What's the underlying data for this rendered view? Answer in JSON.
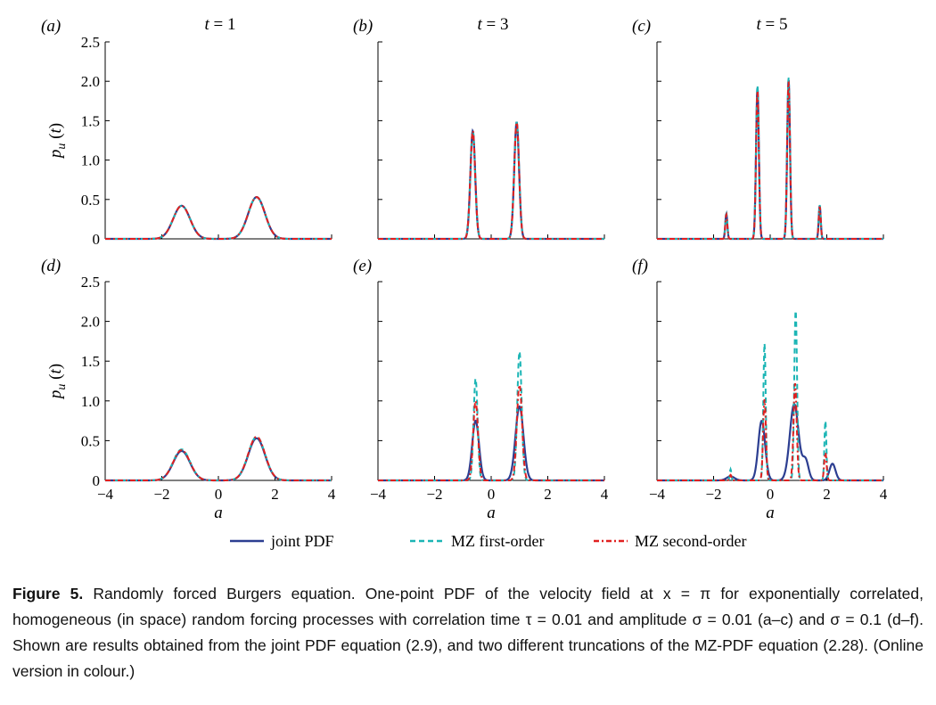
{
  "chart_data": [
    {
      "panel": "(a)",
      "title": "t = 1",
      "type": "line",
      "xlim": [
        -4,
        4
      ],
      "ylim": [
        0,
        2.5
      ],
      "yticks": [
        "0",
        "0.5",
        "1.0",
        "1.5",
        "2.0",
        "2.5"
      ],
      "xticks": [],
      "ylabel": "p_u (t)",
      "xlabel": "",
      "series": [
        {
          "name": "joint PDF",
          "peaks": [
            [
              -1.3,
              0.42,
              0.42
            ],
            [
              1.35,
              0.53,
              0.42
            ]
          ]
        },
        {
          "name": "MZ first-order",
          "peaks": [
            [
              -1.3,
              0.42,
              0.42
            ],
            [
              1.35,
              0.53,
              0.42
            ]
          ]
        },
        {
          "name": "MZ second-order",
          "peaks": [
            [
              -1.3,
              0.42,
              0.42
            ],
            [
              1.35,
              0.53,
              0.42
            ]
          ]
        }
      ]
    },
    {
      "panel": "(b)",
      "title": "t = 3",
      "type": "line",
      "xlim": [
        -4,
        4
      ],
      "ylim": [
        0,
        2.5
      ],
      "yticks": [],
      "xticks": [],
      "ylabel": "",
      "xlabel": "",
      "series": [
        {
          "name": "joint PDF",
          "peaks": [
            [
              -0.65,
              1.37,
              0.12
            ],
            [
              0.9,
              1.48,
              0.12
            ]
          ]
        },
        {
          "name": "MZ first-order",
          "peaks": [
            [
              -0.65,
              1.37,
              0.12
            ],
            [
              0.9,
              1.48,
              0.12
            ]
          ]
        },
        {
          "name": "MZ second-order",
          "peaks": [
            [
              -0.65,
              1.37,
              0.12
            ],
            [
              0.9,
              1.48,
              0.12
            ]
          ]
        }
      ]
    },
    {
      "panel": "(c)",
      "title": "t = 5",
      "type": "line",
      "xlim": [
        -4,
        4
      ],
      "ylim": [
        0,
        2.5
      ],
      "yticks": [],
      "xticks": [],
      "ylabel": "",
      "xlabel": "",
      "series": [
        {
          "name": "joint PDF",
          "peaks": [
            [
              -1.55,
              0.32,
              0.05
            ],
            [
              -0.45,
              1.92,
              0.07
            ],
            [
              0.65,
              2.02,
              0.07
            ],
            [
              1.75,
              0.42,
              0.05
            ]
          ]
        },
        {
          "name": "MZ first-order",
          "peaks": [
            [
              -1.55,
              0.32,
              0.05
            ],
            [
              -0.45,
              1.95,
              0.07
            ],
            [
              0.65,
              2.05,
              0.07
            ],
            [
              1.75,
              0.43,
              0.05
            ]
          ]
        },
        {
          "name": "MZ second-order",
          "peaks": [
            [
              -1.55,
              0.31,
              0.05
            ],
            [
              -0.45,
              1.88,
              0.07
            ],
            [
              0.65,
              2.0,
              0.07
            ],
            [
              1.75,
              0.41,
              0.05
            ]
          ]
        }
      ]
    },
    {
      "panel": "(d)",
      "title": "",
      "type": "line",
      "xlim": [
        -4,
        4
      ],
      "ylim": [
        0,
        2.5
      ],
      "yticks": [
        "0",
        "0.5",
        "1.0",
        "1.5",
        "2.0",
        "2.5"
      ],
      "xticks": [
        "−4",
        "−2",
        "0",
        "2",
        "4"
      ],
      "ylabel": "p_u (t)",
      "xlabel": "a",
      "series": [
        {
          "name": "joint PDF",
          "peaks": [
            [
              -1.3,
              0.37,
              0.42
            ],
            [
              1.35,
              0.53,
              0.42
            ]
          ]
        },
        {
          "name": "MZ first-order",
          "peaks": [
            [
              -1.3,
              0.39,
              0.42
            ],
            [
              1.35,
              0.55,
              0.42
            ]
          ]
        },
        {
          "name": "MZ second-order",
          "peaks": [
            [
              -1.3,
              0.38,
              0.42
            ],
            [
              1.35,
              0.55,
              0.42
            ]
          ]
        }
      ]
    },
    {
      "panel": "(e)",
      "title": "",
      "type": "line",
      "xlim": [
        -4,
        4
      ],
      "ylim": [
        0,
        2.5
      ],
      "yticks": [],
      "xticks": [
        "−4",
        "−2",
        "0",
        "2",
        "4"
      ],
      "ylabel": "",
      "xlabel": "a",
      "series": [
        {
          "name": "joint PDF",
          "peaks": [
            [
              -0.55,
              0.75,
              0.17
            ],
            [
              1.0,
              0.93,
              0.2
            ]
          ]
        },
        {
          "name": "MZ first-order",
          "peaks": [
            [
              -0.55,
              1.28,
              0.1
            ],
            [
              1.0,
              1.62,
              0.11
            ]
          ]
        },
        {
          "name": "MZ second-order",
          "peaks": [
            [
              -0.55,
              1.0,
              0.12
            ],
            [
              1.0,
              1.2,
              0.13
            ]
          ]
        }
      ]
    },
    {
      "panel": "(f)",
      "title": "",
      "type": "line",
      "xlim": [
        -4,
        4
      ],
      "ylim": [
        0,
        2.5
      ],
      "yticks": [],
      "xticks": [
        "−4",
        "−2",
        "0",
        "2",
        "4"
      ],
      "ylabel": "",
      "xlabel": "a",
      "series": [
        {
          "name": "joint PDF",
          "peaks": [
            [
              -1.4,
              0.05,
              0.2
            ],
            [
              -0.3,
              0.75,
              0.17
            ],
            [
              0.85,
              0.96,
              0.22
            ],
            [
              1.25,
              0.25,
              0.15
            ],
            [
              2.2,
              0.21,
              0.15
            ]
          ]
        },
        {
          "name": "MZ first-order",
          "peaks": [
            [
              -1.4,
              0.14,
              0.04
            ],
            [
              -0.2,
              1.72,
              0.06
            ],
            [
              0.9,
              2.15,
              0.07
            ],
            [
              1.95,
              0.75,
              0.05
            ]
          ]
        },
        {
          "name": "MZ second-order",
          "peaks": [
            [
              -1.4,
              0.07,
              0.05
            ],
            [
              -0.2,
              1.02,
              0.07
            ],
            [
              0.88,
              1.22,
              0.08
            ],
            [
              1.95,
              0.35,
              0.06
            ]
          ]
        }
      ]
    }
  ],
  "panel_letters": [
    "(a)",
    "(b)",
    "(c)",
    "(d)",
    "(e)",
    "(f)"
  ],
  "titles": [
    "t = 1",
    "t = 3",
    "t = 5"
  ],
  "ylabel": "p_u (t)",
  "xlabel": "a",
  "legend": [
    {
      "name": "joint PDF",
      "color": "#2c3e91",
      "style": "solid"
    },
    {
      "name": "MZ first-order",
      "color": "#1bb5b5",
      "style": "dashed"
    },
    {
      "name": "MZ second-order",
      "color": "#e02020",
      "style": "dashdot"
    }
  ],
  "caption": {
    "label": "Figure 5.",
    "text": "Randomly forced Burgers equation. One-point PDF of the velocity field at x = π for exponentially correlated, homogeneous (in space) random forcing processes with correlation time τ = 0.01 and amplitude σ = 0.01 (a–c) and σ = 0.1 (d–f). Shown are results obtained from the joint PDF equation (2.9), and two different truncations of the MZ-PDF equation (2.28). (Online version in colour.)"
  }
}
